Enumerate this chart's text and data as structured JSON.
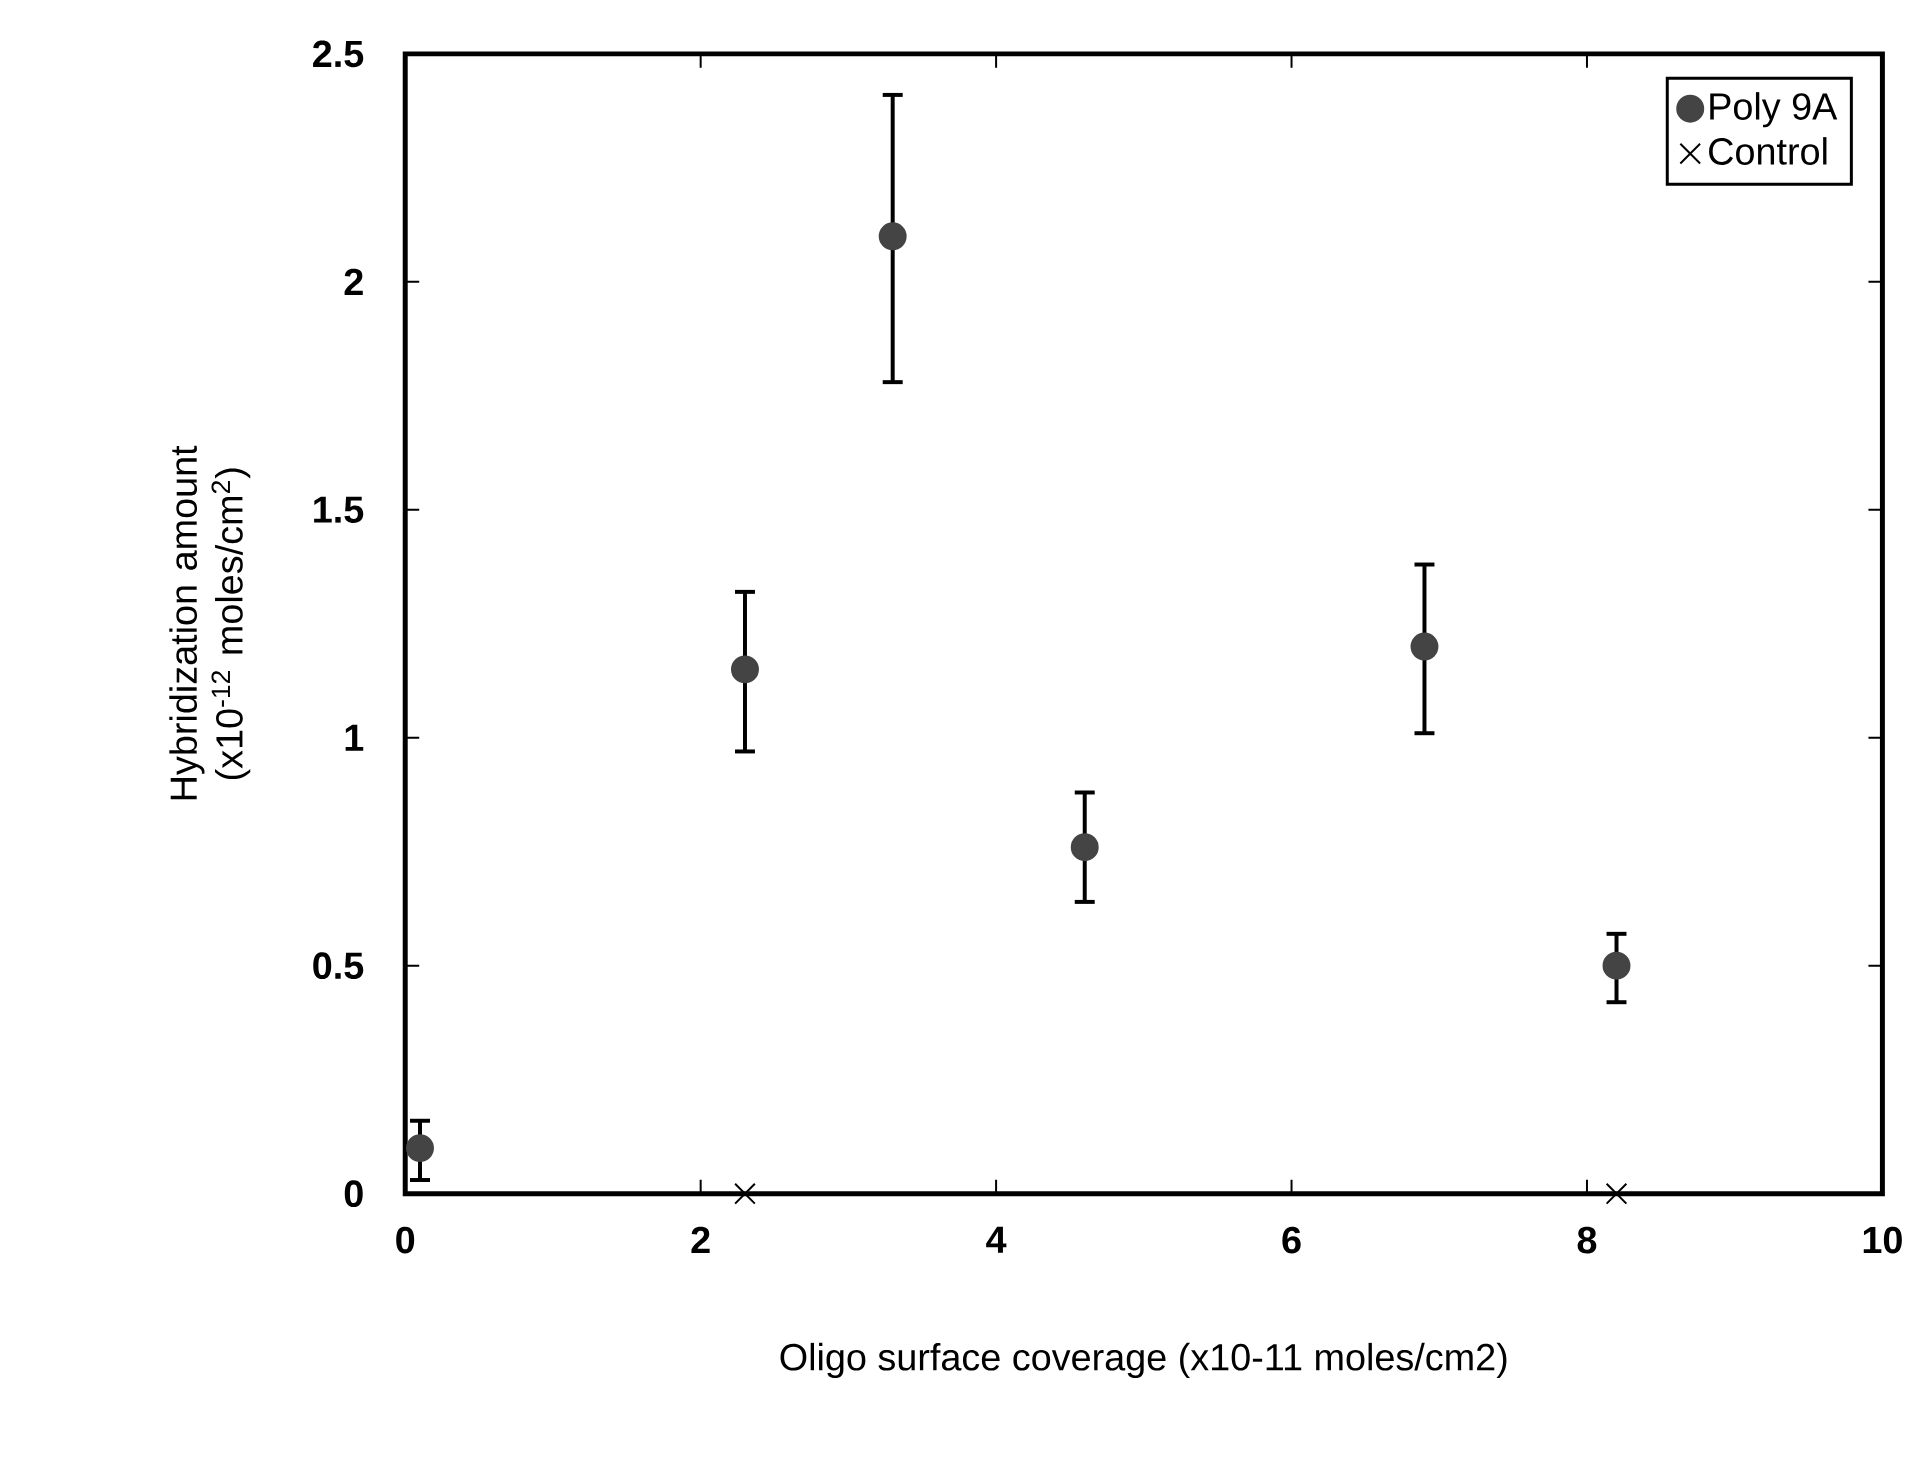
{
  "chart_data": {
    "type": "scatter",
    "xlabel": "Oligo surface coverage (x10-11 moles/cm2)",
    "ylabel": "Hybridization amount (x10$^{-12}$ moles/cm$^{2}$)",
    "xlim": [
      0,
      10
    ],
    "ylim": [
      0,
      2.5
    ],
    "xticks": [
      0,
      2,
      4,
      6,
      8,
      10
    ],
    "yticks": [
      0,
      0.5,
      1,
      1.5,
      2,
      2.5
    ],
    "grid": false,
    "legend": "top right",
    "series": [
      {
        "name": "Poly 9A",
        "color": "#444444",
        "marker": "circle",
        "x": [
          0.1,
          2.3,
          3.3,
          4.6,
          6.9,
          8.2
        ],
        "values": [
          0.1,
          1.15,
          2.1,
          0.76,
          1.2,
          0.5
        ],
        "errors": [
          [
            0.03,
            0.16
          ],
          [
            0.97,
            1.32
          ],
          [
            1.78,
            2.41
          ],
          [
            0.64,
            0.88
          ],
          [
            1.01,
            1.38
          ],
          [
            0.42,
            0.57
          ]
        ]
      },
      {
        "name": "Control",
        "color": "#000000",
        "marker": "cross",
        "x": [
          2.3,
          8.2
        ],
        "values": [
          0,
          0
        ]
      }
    ]
  }
}
